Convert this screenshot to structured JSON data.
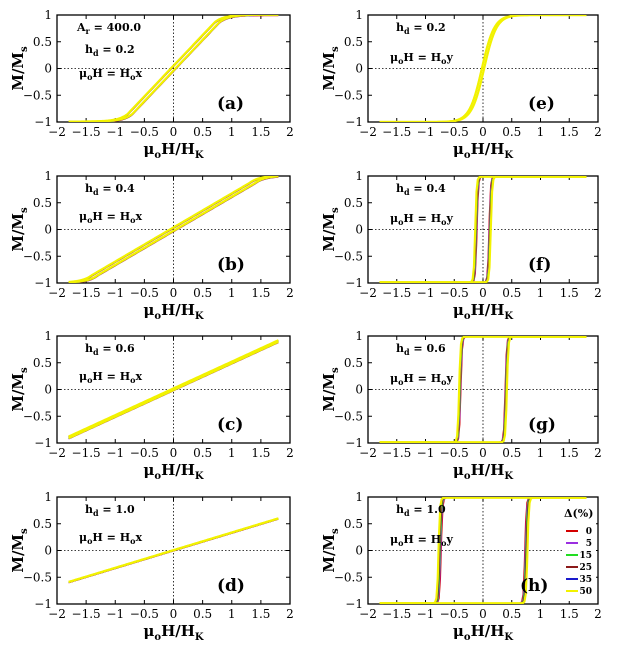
{
  "chart_data": {
    "type": "line",
    "title": "",
    "xlabel": "μoH/HK",
    "ylabel": "M/Ms",
    "xlim": [
      -2,
      2
    ],
    "ylim": [
      -1,
      1
    ],
    "x_ticks": [
      "−2",
      "−1.5",
      "−1",
      "−0.5",
      "0",
      "0.5",
      "1",
      "1.5",
      "2"
    ],
    "y_ticks": [
      "−1",
      "−0.5",
      "0",
      "0.5",
      "1"
    ],
    "legend": {
      "title": "Δ(%)",
      "placement": "right",
      "entries": [
        {
          "label": "0",
          "color": "#d40000"
        },
        {
          "label": "5",
          "color": "#9b2fe0"
        },
        {
          "label": "15",
          "color": "#22dd22"
        },
        {
          "label": "25",
          "color": "#8b1a1a"
        },
        {
          "label": "35",
          "color": "#1a1acc"
        },
        {
          "label": "50",
          "color": "#f2f200"
        }
      ]
    },
    "panels": [
      {
        "id": "a",
        "label": "(a)",
        "ar": "A r = 400.0",
        "hd": "h d = 0.2",
        "field": "μo H = Ho x",
        "field_axis": "x",
        "kind": "hard",
        "sat_field": 0.75,
        "x_range": [
          -1.8,
          1.8
        ],
        "hysteresis_half_width": 0.04,
        "switching_field": null
      },
      {
        "id": "b",
        "label": "(b)",
        "hd": "h d = 0.4",
        "field": "μo H = Ho x",
        "field_axis": "x",
        "kind": "hard",
        "sat_field": 1.35,
        "x_range": [
          -1.8,
          1.8
        ],
        "hysteresis_half_width": 0.05,
        "switching_field": null
      },
      {
        "id": "c",
        "label": "(c)",
        "hd": "h d = 0.6",
        "field": "μo H = Ho x",
        "field_axis": "x",
        "kind": "linear",
        "slope": 0.5,
        "x_range": [
          -1.8,
          1.8
        ],
        "hysteresis_half_width": 0.03,
        "switching_field": null
      },
      {
        "id": "d",
        "label": "(d)",
        "hd": "h d = 1.0",
        "field": "μo H = Ho x",
        "field_axis": "x",
        "kind": "linear",
        "slope": 0.33,
        "x_range": [
          -1.8,
          1.8
        ],
        "hysteresis_half_width": 0.0,
        "switching_field": null
      },
      {
        "id": "e",
        "label": "(e)",
        "hd": "h d = 0.2",
        "field": "μo H = Ho y",
        "field_axis": "y",
        "kind": "easy",
        "sat_field": 0.3,
        "x_range": [
          -1.8,
          1.8
        ],
        "hysteresis_half_width": 0.02,
        "switching_field": null
      },
      {
        "id": "f",
        "label": "(f)",
        "hd": "h d = 0.4",
        "field": "μo H = Ho y",
        "field_axis": "y",
        "kind": "square",
        "x_range": [
          -1.8,
          1.8
        ],
        "switching_field": 0.12
      },
      {
        "id": "g",
        "label": "(g)",
        "hd": "h d = 0.6",
        "field": "μo H = Ho y",
        "field_axis": "y",
        "kind": "square",
        "x_range": [
          -1.8,
          1.8
        ],
        "switching_field": 0.4
      },
      {
        "id": "h",
        "label": "(h)",
        "hd": "h d = 1.0",
        "field": "μo H = Ho y",
        "field_axis": "y",
        "kind": "square",
        "x_range": [
          -1.8,
          1.8
        ],
        "switching_field": 0.75,
        "show_legend": true
      }
    ]
  }
}
